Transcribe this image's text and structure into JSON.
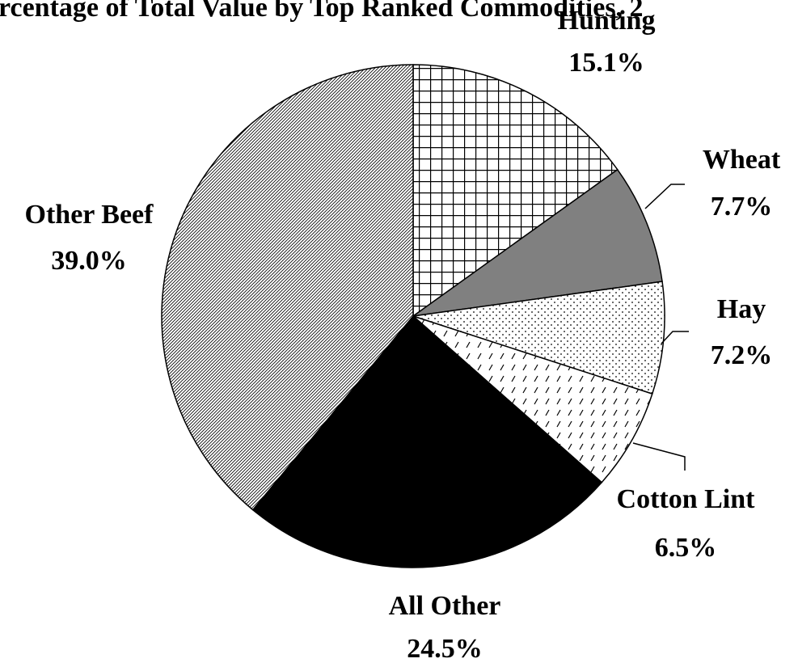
{
  "chart_data": {
    "type": "pie",
    "title": "rcentage of Total Value by Top Ranked Commodities, 2",
    "categories": [
      "Hunting",
      "Wheat",
      "Hay",
      "Cotton Lint",
      "All Other",
      "Other Beef"
    ],
    "values": [
      15.1,
      7.7,
      7.2,
      6.5,
      24.5,
      39.0
    ],
    "value_labels": [
      "15.1%",
      "7.7%",
      "7.2%",
      "6.5%",
      "24.5%",
      "39.0%"
    ],
    "colors": [
      "url(#p-grid)",
      "#808080",
      "url(#p-dots)",
      "url(#p-dash)",
      "#000000",
      "url(#p-hatch)"
    ]
  }
}
